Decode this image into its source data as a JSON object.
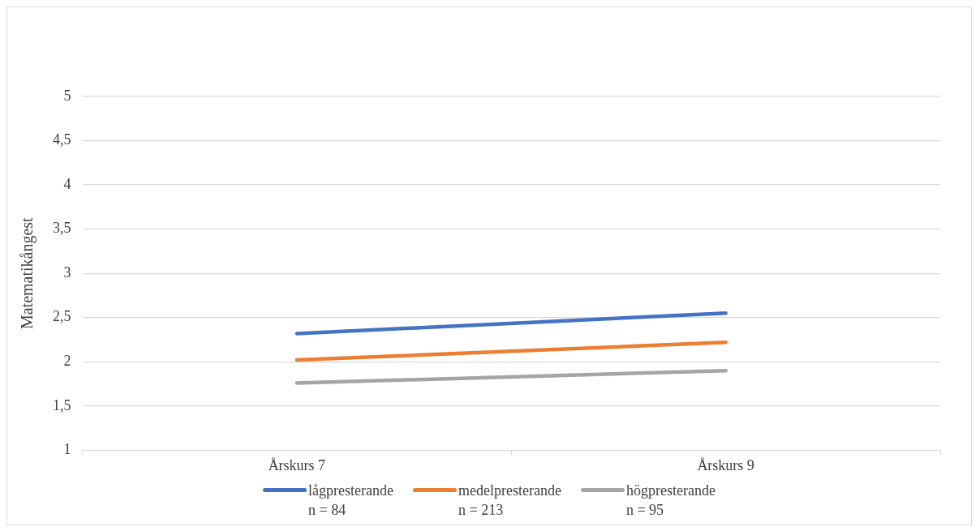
{
  "chart_data": {
    "type": "line",
    "ylabel": "Matematikångest",
    "categories": [
      "Årskurs 7",
      "Årskurs 9"
    ],
    "series": [
      {
        "name": "lågpresterande\nn = 84",
        "color": "#4472c4",
        "values": [
          2.32,
          2.55
        ]
      },
      {
        "name": "medelpresterande\nn = 213",
        "color": "#ed7d31",
        "values": [
          2.02,
          2.22
        ]
      },
      {
        "name": "högpresterande\nn = 95",
        "color": "#a5a5a5",
        "values": [
          1.76,
          1.9
        ]
      }
    ],
    "ylim": [
      1,
      5
    ],
    "yticks": [
      1,
      {
        "value": 1.5,
        "label": "1,5"
      },
      2,
      {
        "value": 2.5,
        "label": "2,5"
      },
      3,
      {
        "value": 3.5,
        "label": "3,5"
      },
      4,
      {
        "value": 4.5,
        "label": "4,5"
      },
      5
    ],
    "grid": "y",
    "legend": "bottom",
    "marker": "none",
    "line_style": "solid"
  }
}
